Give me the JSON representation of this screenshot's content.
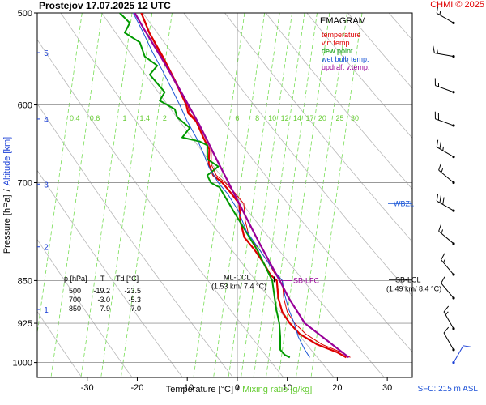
{
  "header": {
    "title": "Prostejov    17.07.2025 12 UTC",
    "credit": "CHMI © 2025",
    "surface_note": "SFC: 215 m ASL"
  },
  "chart_data": {
    "type": "line",
    "diagram": "EMAGRAM",
    "xlabel": "Temperature [°C]",
    "xlabel_sep": "/",
    "xlabel2": "Mixing ratio [g/kg]",
    "ylabel": "Pressure [hPa]",
    "ylabel_sep": "/",
    "ylabel2": "Altitude [km]",
    "x_range": [
      -40,
      35
    ],
    "x_ticks": [
      -30,
      -20,
      -10,
      0,
      10,
      20,
      30
    ],
    "pressure_range": [
      1030,
      500
    ],
    "pressure_ticks": [
      500,
      600,
      700,
      850,
      925,
      1000
    ],
    "pressure_scale": "log",
    "altitude_ticks": [
      {
        "km": "1",
        "p": 900
      },
      {
        "km": "2",
        "p": 795
      },
      {
        "km": "3",
        "p": 702
      },
      {
        "km": "4",
        "p": 617
      },
      {
        "km": "5",
        "p": 541
      }
    ],
    "mixing_ratio_labels": [
      "0.4",
      "0.6",
      "1",
      "1.4",
      "2",
      "6",
      "8",
      "10",
      "12",
      "14",
      "17",
      "20",
      "25",
      "30"
    ],
    "mixing_ratio_label_temps": [
      -32.5,
      -28.5,
      -22.5,
      -18.5,
      -14.5,
      0,
      4,
      7,
      9.5,
      12,
      14.5,
      17,
      20.5,
      23.5
    ],
    "legend_title": "EMAGRAM",
    "legend": [
      {
        "name": "temperature",
        "color": "#dd0000"
      },
      {
        "name": "virt.temp.",
        "color": "#dd0000"
      },
      {
        "name": "dew point",
        "color": "#009900"
      },
      {
        "name": "wet bulb temp.",
        "color": "#1a56d6"
      },
      {
        "name": "updraft v.temp.",
        "color": "#990099"
      }
    ],
    "series": [
      {
        "name": "temperature",
        "color": "#dd0000",
        "points": [
          [
            21.8,
            990
          ],
          [
            20,
            980
          ],
          [
            16,
            965
          ],
          [
            12.5,
            945
          ],
          [
            10.5,
            925
          ],
          [
            9,
            905
          ],
          [
            8.2,
            880
          ],
          [
            7.9,
            850
          ],
          [
            6.6,
            840
          ],
          [
            5.2,
            820
          ],
          [
            3.5,
            800
          ],
          [
            1.4,
            780
          ],
          [
            0.6,
            755
          ],
          [
            0.4,
            730
          ],
          [
            -1.2,
            715
          ],
          [
            -3,
            700
          ],
          [
            -4.8,
            690
          ],
          [
            -5.7,
            675
          ],
          [
            -5.6,
            655
          ],
          [
            -6.8,
            640
          ],
          [
            -8.2,
            620
          ],
          [
            -9.8,
            610
          ],
          [
            -10.2,
            600
          ],
          [
            -11.8,
            580
          ],
          [
            -13.6,
            560
          ],
          [
            -15,
            545
          ],
          [
            -17.6,
            520
          ],
          [
            -19.2,
            500
          ]
        ]
      },
      {
        "name": "virt.temp.",
        "color": "#dd0000",
        "points": [
          [
            22.6,
            990
          ],
          [
            20.8,
            980
          ],
          [
            17,
            965
          ],
          [
            13.7,
            945
          ],
          [
            11.5,
            925
          ],
          [
            10,
            905
          ],
          [
            9.3,
            880
          ],
          [
            9,
            850
          ],
          [
            7.6,
            840
          ],
          [
            6.2,
            820
          ],
          [
            4.5,
            800
          ],
          [
            2.4,
            780
          ],
          [
            1.6,
            755
          ],
          [
            1.3,
            730
          ],
          [
            -0.4,
            715
          ],
          [
            -2.4,
            700
          ],
          [
            -4.2,
            690
          ],
          [
            -5.2,
            675
          ],
          [
            -5.2,
            655
          ],
          [
            -6.4,
            640
          ],
          [
            -7.9,
            620
          ],
          [
            -9.5,
            610
          ],
          [
            -9.9,
            600
          ],
          [
            -11.6,
            580
          ],
          [
            -13.4,
            560
          ],
          [
            -14.8,
            545
          ],
          [
            -17.5,
            520
          ],
          [
            -19.1,
            500
          ]
        ]
      },
      {
        "name": "dew point",
        "color": "#009900",
        "points": [
          [
            10.5,
            990
          ],
          [
            9.5,
            985
          ],
          [
            8.6,
            975
          ],
          [
            8.6,
            950
          ],
          [
            8.4,
            925
          ],
          [
            7.8,
            900
          ],
          [
            7.4,
            875
          ],
          [
            7,
            850
          ],
          [
            4,
            800
          ],
          [
            -0.8,
            740
          ],
          [
            -3,
            713
          ],
          [
            -3.6,
            706
          ],
          [
            -4,
            705
          ],
          [
            -5.3,
            700
          ],
          [
            -6,
            690
          ],
          [
            -3.8,
            678
          ],
          [
            -6,
            668
          ],
          [
            -6,
            650
          ],
          [
            -7.5,
            645
          ],
          [
            -11,
            640
          ],
          [
            -9.5,
            628
          ],
          [
            -12,
            615
          ],
          [
            -12.5,
            605
          ],
          [
            -15.5,
            595
          ],
          [
            -14.5,
            585
          ],
          [
            -16,
            575
          ],
          [
            -17.5,
            565
          ],
          [
            -16,
            555
          ],
          [
            -18.5,
            545
          ],
          [
            -19.5,
            530
          ],
          [
            -22.5,
            520
          ],
          [
            -21.5,
            510
          ],
          [
            -23.5,
            500
          ]
        ]
      },
      {
        "name": "wet bulb temp.",
        "color": "#1a56d6",
        "points": [
          [
            14.5,
            990
          ],
          [
            13.5,
            975
          ],
          [
            12.2,
            950
          ],
          [
            11.4,
            925
          ],
          [
            10.3,
            900
          ],
          [
            9.5,
            875
          ],
          [
            9,
            850
          ],
          [
            7,
            830
          ],
          [
            4.5,
            800
          ],
          [
            1.8,
            770
          ],
          [
            0.2,
            740
          ],
          [
            -2,
            715
          ],
          [
            -3.8,
            700
          ],
          [
            -5.6,
            680
          ],
          [
            -6.8,
            660
          ],
          [
            -8.2,
            640
          ],
          [
            -10,
            620
          ],
          [
            -11.5,
            600
          ],
          [
            -13.2,
            580
          ],
          [
            -15,
            560
          ],
          [
            -17,
            540
          ],
          [
            -18.8,
            520
          ],
          [
            -20.8,
            500
          ]
        ]
      },
      {
        "name": "updraft v.temp.",
        "color": "#990099",
        "points": [
          [
            22.3,
            990
          ],
          [
            17,
            950
          ],
          [
            13.5,
            925
          ],
          [
            10.3,
            880
          ],
          [
            8.8,
            855
          ],
          [
            6.5,
            820
          ],
          [
            3.8,
            780
          ],
          [
            -0.3,
            720
          ],
          [
            -4,
            670
          ],
          [
            -7.5,
            625
          ],
          [
            -11.2,
            585
          ],
          [
            -14.8,
            550
          ],
          [
            -18.8,
            515
          ],
          [
            -20.5,
            500
          ]
        ]
      }
    ],
    "annotations": {
      "ml_lcl": {
        "label": "ML-CCL",
        "sub": "(1.53 km/ 7.4 °C)",
        "p": 850,
        "t": 7.4
      },
      "sb_lfc": {
        "label": "SB-LFC",
        "p": 850,
        "t": 9
      },
      "sb_lcl": {
        "label": "SB-LCL",
        "sub": "(1.49 km/ 8.4 °C)",
        "p": 850
      },
      "wbzl": {
        "label": "WBZL",
        "p": 730
      }
    },
    "table": {
      "header": [
        "p [hPa]",
        "T",
        "Td [°C]"
      ],
      "rows": [
        [
          "500",
          "-19.2",
          "-23.5"
        ],
        [
          "700",
          "-3.0",
          "-5.3"
        ],
        [
          "850",
          "7.9",
          "7.0"
        ]
      ]
    },
    "wind_barbs": [
      {
        "p": 510,
        "dir_deg": 300,
        "speed_kt": 15
      },
      {
        "p": 545,
        "dir_deg": 280,
        "speed_kt": 15
      },
      {
        "p": 585,
        "dir_deg": 290,
        "speed_kt": 15
      },
      {
        "p": 625,
        "dir_deg": 290,
        "speed_kt": 20
      },
      {
        "p": 665,
        "dir_deg": 300,
        "speed_kt": 25
      },
      {
        "p": 700,
        "dir_deg": 310,
        "speed_kt": 15
      },
      {
        "p": 740,
        "dir_deg": 300,
        "speed_kt": 30
      },
      {
        "p": 790,
        "dir_deg": 310,
        "speed_kt": 15
      },
      {
        "p": 840,
        "dir_deg": 320,
        "speed_kt": 15
      },
      {
        "p": 880,
        "dir_deg": 320,
        "speed_kt": 10
      },
      {
        "p": 935,
        "dir_deg": 330,
        "speed_kt": 15
      },
      {
        "p": 975,
        "dir_deg": 330,
        "speed_kt": 10
      },
      {
        "p": 1000,
        "dir_deg": 30,
        "speed_kt": 10
      }
    ]
  }
}
